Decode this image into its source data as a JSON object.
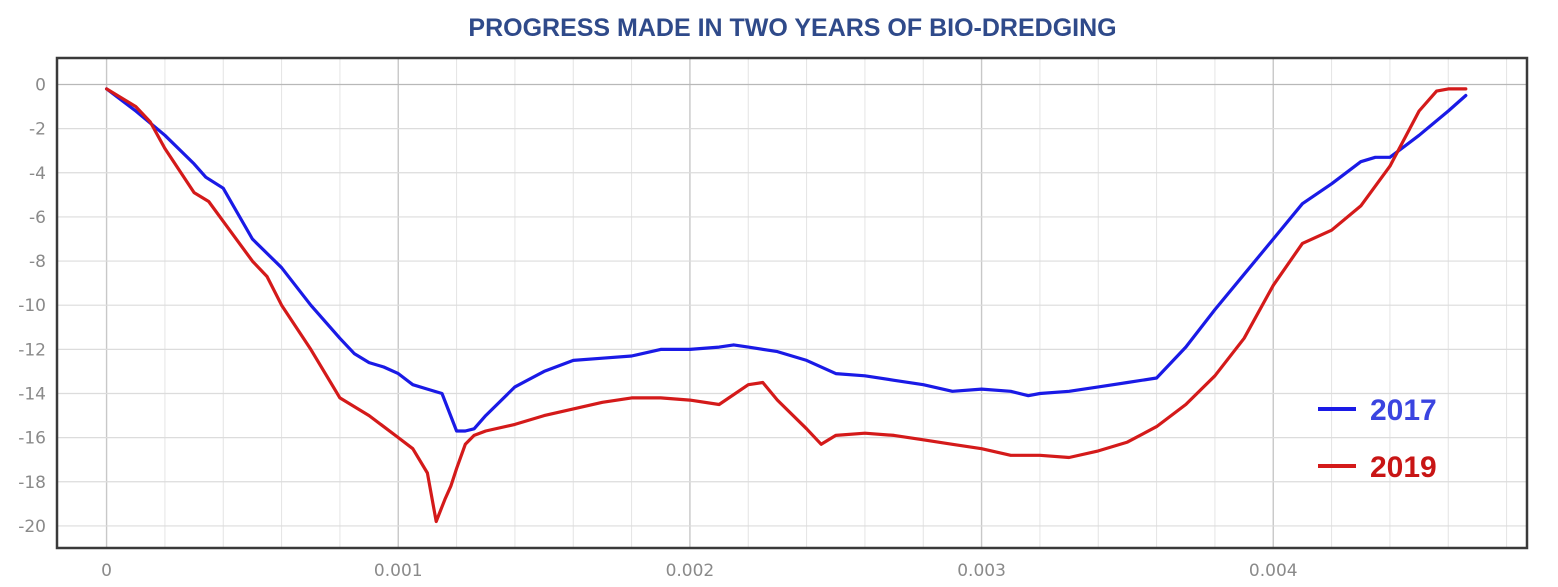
{
  "chart_data": {
    "type": "line",
    "title": "PROGRESS MADE IN TWO YEARS OF BIO-DREDGING",
    "xlabel": "",
    "ylabel": "",
    "xlim": [
      -0.00017,
      0.00487
    ],
    "ylim": [
      -21.0,
      1.2
    ],
    "x_ticks": [
      0,
      0.001,
      0.002,
      0.003,
      0.004
    ],
    "x_tick_labels": [
      "0",
      "0.001",
      "0.002",
      "0.003",
      "0.004"
    ],
    "y_ticks": [
      0,
      -2,
      -4,
      -6,
      -8,
      -10,
      -12,
      -14,
      -16,
      -18,
      -20
    ],
    "y_tick_labels": [
      "0",
      "-2",
      "-4",
      "-6",
      "-8",
      "-10",
      "-12",
      "-14",
      "-16",
      "-18",
      "-20"
    ],
    "grid": true,
    "legend_position": "bottom-right",
    "series": [
      {
        "name": "2017",
        "color": "#1a1ae6",
        "x": [
          0,
          0.0001,
          0.0002,
          0.0003,
          0.00034,
          0.0004,
          0.0005,
          0.0006,
          0.0007,
          0.0008,
          0.00085,
          0.0009,
          0.00095,
          0.001,
          0.00105,
          0.0011,
          0.00115,
          0.0012,
          0.00123,
          0.00126,
          0.0013,
          0.0014,
          0.0015,
          0.0016,
          0.0017,
          0.0018,
          0.0019,
          0.002,
          0.0021,
          0.00215,
          0.0022,
          0.0023,
          0.0024,
          0.0025,
          0.0026,
          0.0027,
          0.0028,
          0.0029,
          0.003,
          0.0031,
          0.00316,
          0.0032,
          0.0033,
          0.0034,
          0.0035,
          0.0036,
          0.0037,
          0.0038,
          0.0039,
          0.004,
          0.0041,
          0.0042,
          0.0043,
          0.00435,
          0.0044,
          0.0045,
          0.0046,
          0.00466
        ],
        "y": [
          -0.2,
          -1.2,
          -2.3,
          -3.6,
          -4.2,
          -4.7,
          -7.0,
          -8.3,
          -10.0,
          -11.5,
          -12.2,
          -12.6,
          -12.8,
          -13.1,
          -13.6,
          -13.8,
          -14.0,
          -15.7,
          -15.7,
          -15.6,
          -15.0,
          -13.7,
          -13.0,
          -12.5,
          -12.4,
          -12.3,
          -12.0,
          -12.0,
          -11.9,
          -11.8,
          -11.9,
          -12.1,
          -12.5,
          -13.1,
          -13.2,
          -13.4,
          -13.6,
          -13.9,
          -13.8,
          -13.9,
          -14.1,
          -14.0,
          -13.9,
          -13.7,
          -13.5,
          -13.3,
          -11.9,
          -10.2,
          -8.6,
          -7.0,
          -5.4,
          -4.5,
          -3.5,
          -3.3,
          -3.3,
          -2.3,
          -1.2,
          -0.5
        ]
      },
      {
        "name": "2019",
        "color": "#d41a1a",
        "x": [
          0,
          0.0001,
          0.00015,
          0.0002,
          0.0003,
          0.00035,
          0.0004,
          0.0005,
          0.00055,
          0.0006,
          0.0007,
          0.0008,
          0.0009,
          0.001,
          0.00105,
          0.0011,
          0.00113,
          0.00116,
          0.00118,
          0.0012,
          0.00123,
          0.00126,
          0.0013,
          0.0014,
          0.0015,
          0.0016,
          0.0017,
          0.0018,
          0.0019,
          0.002,
          0.0021,
          0.0022,
          0.00225,
          0.0023,
          0.0024,
          0.00245,
          0.0025,
          0.0026,
          0.0027,
          0.0028,
          0.0029,
          0.003,
          0.0031,
          0.0032,
          0.0033,
          0.0034,
          0.0035,
          0.0036,
          0.0037,
          0.0038,
          0.0039,
          0.004,
          0.0041,
          0.0042,
          0.0043,
          0.0044,
          0.0045,
          0.00456,
          0.0046,
          0.00466
        ],
        "y": [
          -0.2,
          -1.0,
          -1.7,
          -2.9,
          -4.9,
          -5.3,
          -6.2,
          -8.0,
          -8.7,
          -10.0,
          -12.0,
          -14.2,
          -15.0,
          -16.0,
          -16.5,
          -17.6,
          -19.8,
          -18.8,
          -18.2,
          -17.4,
          -16.3,
          -15.9,
          -15.7,
          -15.4,
          -15.0,
          -14.7,
          -14.4,
          -14.2,
          -14.2,
          -14.3,
          -14.5,
          -13.6,
          -13.5,
          -14.3,
          -15.6,
          -16.3,
          -15.9,
          -15.8,
          -15.9,
          -16.1,
          -16.3,
          -16.5,
          -16.8,
          -16.8,
          -16.9,
          -16.6,
          -16.2,
          -15.5,
          -14.5,
          -13.2,
          -11.5,
          -9.1,
          -7.2,
          -6.6,
          -5.5,
          -3.7,
          -1.2,
          -0.3,
          -0.2,
          -0.2
        ]
      }
    ]
  }
}
